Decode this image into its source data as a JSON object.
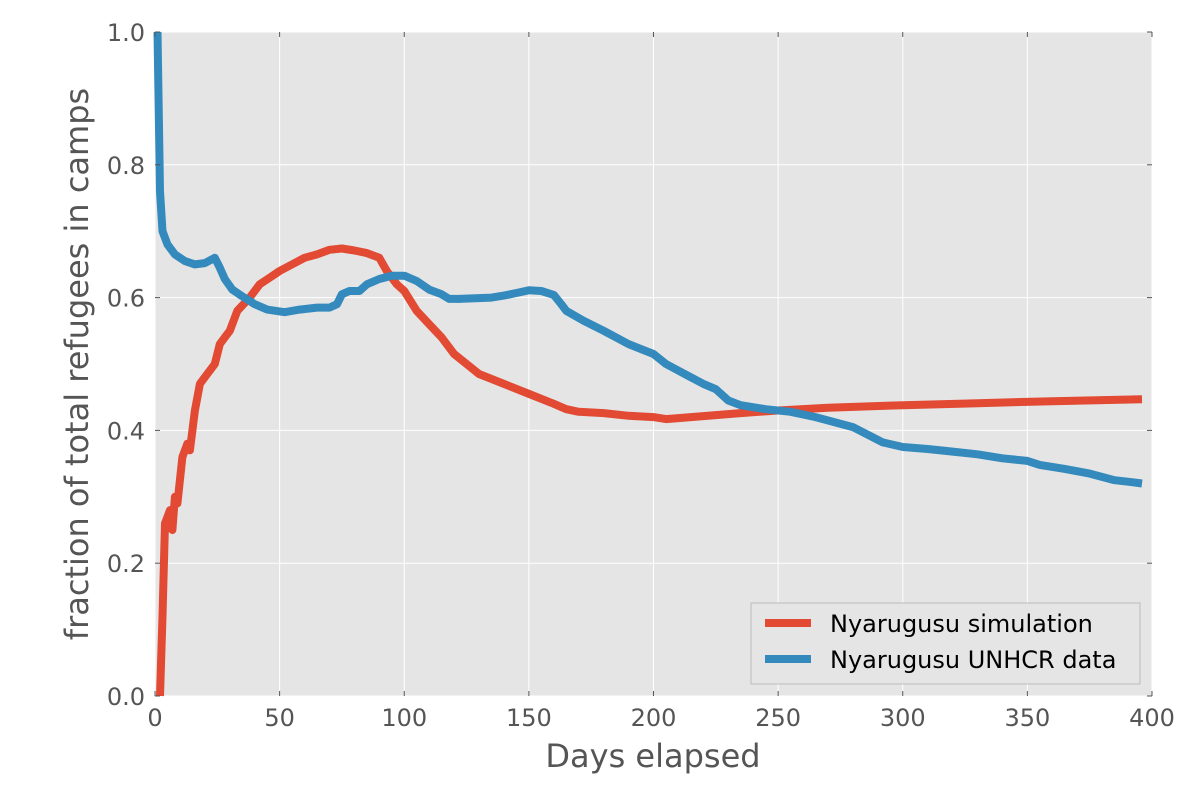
{
  "chart_data": {
    "type": "line",
    "xlabel": "Days elapsed",
    "ylabel": "fraction of total refugees in camps",
    "xlim": [
      0,
      400
    ],
    "ylim": [
      0.0,
      1.0
    ],
    "xticks": [
      "0",
      "50",
      "100",
      "150",
      "200",
      "250",
      "300",
      "350",
      "400"
    ],
    "yticks": [
      "0.0",
      "0.2",
      "0.4",
      "0.6",
      "0.8",
      "1.0"
    ],
    "grid": true,
    "legend_position": "lower-right",
    "background_color": "#e5e5e5",
    "series": [
      {
        "name": "Nyarugusu simulation",
        "color": "#e24a33",
        "points": [
          [
            2,
            0.0
          ],
          [
            3,
            0.12
          ],
          [
            4,
            0.26
          ],
          [
            6,
            0.28
          ],
          [
            7,
            0.25
          ],
          [
            8,
            0.3
          ],
          [
            9,
            0.29
          ],
          [
            11,
            0.36
          ],
          [
            13,
            0.38
          ],
          [
            14,
            0.37
          ],
          [
            16,
            0.43
          ],
          [
            18,
            0.47
          ],
          [
            20,
            0.48
          ],
          [
            22,
            0.49
          ],
          [
            24,
            0.5
          ],
          [
            26,
            0.53
          ],
          [
            28,
            0.54
          ],
          [
            30,
            0.55
          ],
          [
            33,
            0.58
          ],
          [
            38,
            0.6
          ],
          [
            42,
            0.62
          ],
          [
            46,
            0.63
          ],
          [
            50,
            0.64
          ],
          [
            55,
            0.65
          ],
          [
            60,
            0.66
          ],
          [
            65,
            0.665
          ],
          [
            70,
            0.672
          ],
          [
            75,
            0.674
          ],
          [
            80,
            0.671
          ],
          [
            85,
            0.667
          ],
          [
            90,
            0.66
          ],
          [
            93,
            0.64
          ],
          [
            97,
            0.62
          ],
          [
            100,
            0.61
          ],
          [
            105,
            0.58
          ],
          [
            110,
            0.56
          ],
          [
            115,
            0.54
          ],
          [
            120,
            0.515
          ],
          [
            125,
            0.5
          ],
          [
            130,
            0.485
          ],
          [
            140,
            0.47
          ],
          [
            150,
            0.455
          ],
          [
            160,
            0.44
          ],
          [
            165,
            0.432
          ],
          [
            170,
            0.428
          ],
          [
            180,
            0.426
          ],
          [
            190,
            0.422
          ],
          [
            200,
            0.42
          ],
          [
            205,
            0.417
          ],
          [
            215,
            0.42
          ],
          [
            225,
            0.423
          ],
          [
            235,
            0.426
          ],
          [
            250,
            0.43
          ],
          [
            270,
            0.434
          ],
          [
            300,
            0.438
          ],
          [
            330,
            0.441
          ],
          [
            360,
            0.444
          ],
          [
            396,
            0.447
          ]
        ]
      },
      {
        "name": "Nyarugusu UNHCR data",
        "color": "#348abd",
        "points": [
          [
            1,
            1.0
          ],
          [
            2,
            0.76
          ],
          [
            3,
            0.7
          ],
          [
            5,
            0.68
          ],
          [
            8,
            0.665
          ],
          [
            12,
            0.655
          ],
          [
            16,
            0.65
          ],
          [
            20,
            0.652
          ],
          [
            24,
            0.66
          ],
          [
            26,
            0.645
          ],
          [
            28,
            0.628
          ],
          [
            31,
            0.612
          ],
          [
            35,
            0.602
          ],
          [
            40,
            0.59
          ],
          [
            45,
            0.582
          ],
          [
            52,
            0.578
          ],
          [
            58,
            0.582
          ],
          [
            65,
            0.585
          ],
          [
            70,
            0.585
          ],
          [
            73,
            0.59
          ],
          [
            75,
            0.605
          ],
          [
            78,
            0.61
          ],
          [
            82,
            0.61
          ],
          [
            85,
            0.62
          ],
          [
            90,
            0.628
          ],
          [
            95,
            0.633
          ],
          [
            100,
            0.633
          ],
          [
            105,
            0.625
          ],
          [
            110,
            0.612
          ],
          [
            115,
            0.605
          ],
          [
            118,
            0.598
          ],
          [
            122,
            0.598
          ],
          [
            135,
            0.6
          ],
          [
            140,
            0.603
          ],
          [
            145,
            0.607
          ],
          [
            150,
            0.611
          ],
          [
            155,
            0.61
          ],
          [
            160,
            0.604
          ],
          [
            163,
            0.59
          ],
          [
            165,
            0.58
          ],
          [
            172,
            0.565
          ],
          [
            180,
            0.55
          ],
          [
            190,
            0.53
          ],
          [
            200,
            0.515
          ],
          [
            205,
            0.5
          ],
          [
            210,
            0.49
          ],
          [
            215,
            0.48
          ],
          [
            220,
            0.47
          ],
          [
            225,
            0.462
          ],
          [
            230,
            0.445
          ],
          [
            235,
            0.438
          ],
          [
            245,
            0.432
          ],
          [
            255,
            0.428
          ],
          [
            265,
            0.42
          ],
          [
            280,
            0.405
          ],
          [
            292,
            0.382
          ],
          [
            300,
            0.375
          ],
          [
            310,
            0.372
          ],
          [
            320,
            0.368
          ],
          [
            330,
            0.364
          ],
          [
            340,
            0.358
          ],
          [
            350,
            0.354
          ],
          [
            355,
            0.348
          ],
          [
            365,
            0.342
          ],
          [
            375,
            0.335
          ],
          [
            385,
            0.325
          ],
          [
            392,
            0.322
          ],
          [
            396,
            0.32
          ]
        ]
      }
    ]
  }
}
